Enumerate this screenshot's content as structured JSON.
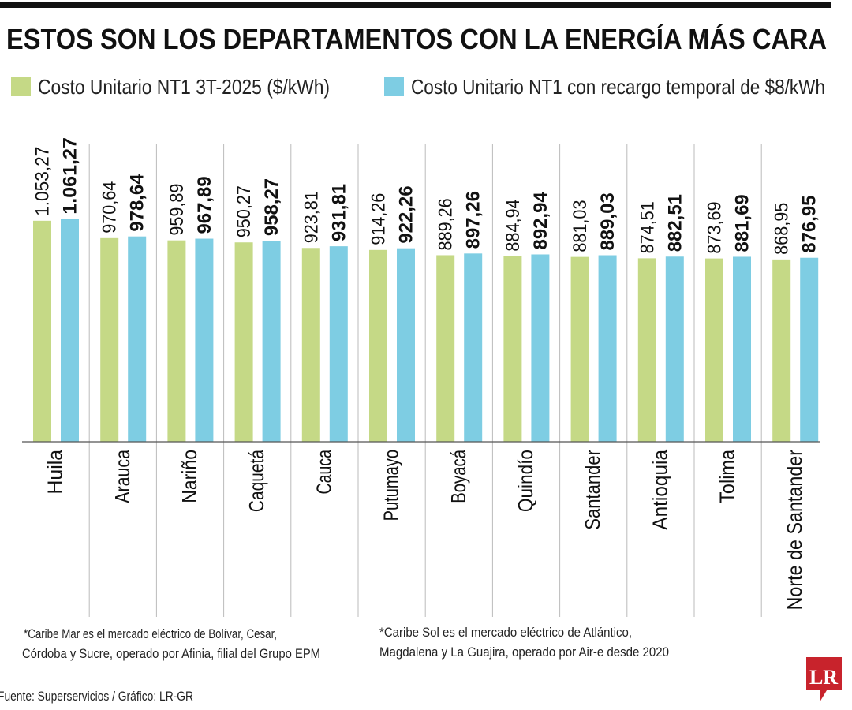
{
  "chart_data": {
    "type": "bar",
    "title": "ESTOS SON LOS DEPARTAMENTOS CON LA ENERGÍA MÁS CARA",
    "categories": [
      "Huila",
      "Arauca",
      "Nariño",
      "Caquetá",
      "Cauca",
      "Putumayo",
      "Boyacá",
      "Quindío",
      "Santander",
      "Antioquia",
      "Tolima",
      "Norte de Santander"
    ],
    "series": [
      {
        "name": "Costo Unitario NT1 3T-2025 ($/kWh)",
        "color": "#c5d986",
        "values": [
          1053.27,
          970.64,
          959.89,
          950.27,
          923.81,
          914.26,
          889.26,
          884.94,
          881.03,
          874.51,
          873.69,
          868.95
        ],
        "labels": [
          "1.053,27",
          "970,64",
          "959,89",
          "950,27",
          "923,81",
          "914,26",
          "889,26",
          "884,94",
          "881,03",
          "874,51",
          "873,69",
          "868,95"
        ]
      },
      {
        "name": "Costo Unitario NT1 con recargo temporal de $8/kWh",
        "color": "#7ecde3",
        "values": [
          1061.27,
          978.64,
          967.89,
          958.27,
          931.81,
          922.26,
          897.26,
          892.94,
          889.03,
          882.51,
          881.69,
          876.95
        ],
        "labels": [
          "1.061,27",
          "978,64",
          "967,89",
          "958,27",
          "931,81",
          "922,26",
          "897,26",
          "892,94",
          "889,03",
          "882,51",
          "881,69",
          "876,95"
        ]
      }
    ],
    "ylim": [
      0,
      1061.27
    ],
    "grid": false,
    "legend": "top-left"
  },
  "notes": {
    "caribe_mar_1": "*Caribe Mar es el mercado eléctrico de Bolívar, Cesar,",
    "caribe_mar_2": "Córdoba y Sucre, operado por Afinia, filial del Grupo EPM",
    "caribe_sol_1": "*Caribe Sol es el mercado eléctrico de Atlántico,",
    "caribe_sol_2": "Magdalena y La Guajira, operado por Air-e desde 2020",
    "source": "Fuente: Superservicios / Gráfico: LR-GR"
  },
  "logo": {
    "text": "LR",
    "color": "#c8232c"
  }
}
